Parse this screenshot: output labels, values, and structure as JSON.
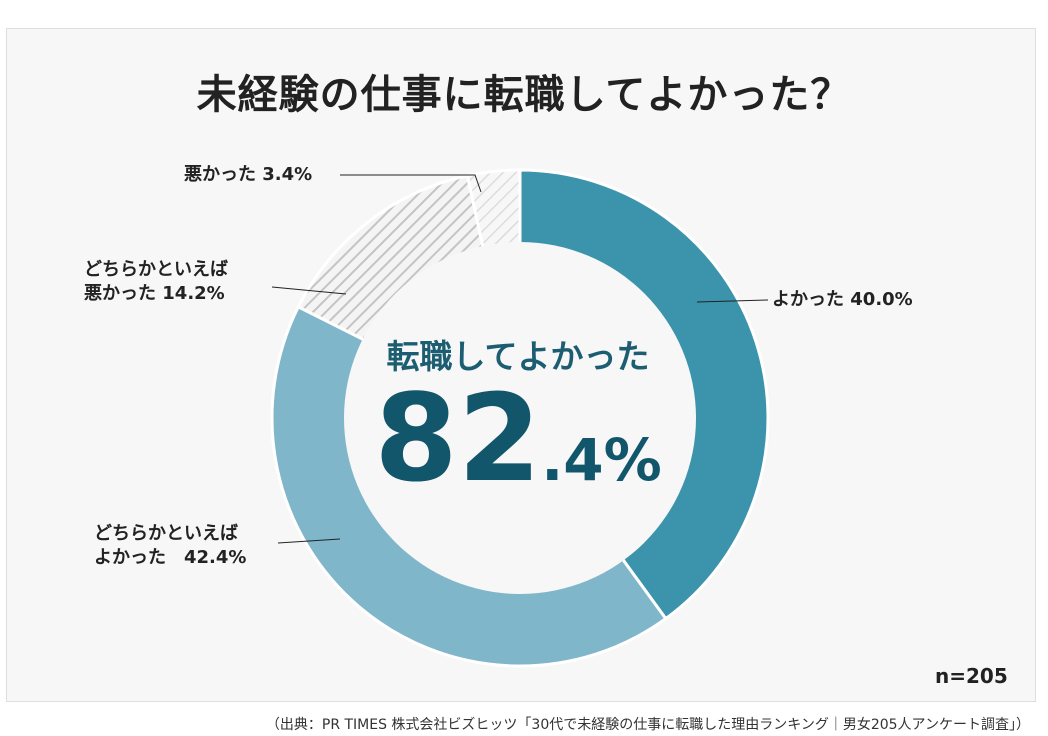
{
  "chart_data": {
    "type": "pie",
    "title": "未経験の仕事に転職してよかった？",
    "slices": [
      {
        "name": "よかった",
        "label_lines": [
          "よかった 40.0%"
        ],
        "value": 40.0,
        "color": "#3c94ac",
        "pattern": "solid"
      },
      {
        "name": "どちらかといえばよかった",
        "label_lines": [
          "どちらかといえば",
          "よかった　42.4%"
        ],
        "value": 42.4,
        "color": "#80b6c9",
        "pattern": "solid"
      },
      {
        "name": "どちらかといえば悪かった",
        "label_lines": [
          "どちらかといえば",
          "悪かった 14.2%"
        ],
        "value": 14.2,
        "color": "#c8c8c8",
        "pattern": "hatch"
      },
      {
        "name": "悪かった",
        "label_lines": [
          "悪かった 3.4%"
        ],
        "value": 3.4,
        "color": "#dedede",
        "pattern": "hatch-light"
      }
    ],
    "center": {
      "caption": "転職してよかった",
      "value_main": "82",
      "value_decimal": ".4%"
    },
    "sample_size": "n=205",
    "legend": "none"
  },
  "source_text": "（出典：PR TIMES 株式会社ビズヒッツ「30代で未経験の仕事に転職した理由ランキング｜男女205人アンケート調査」）"
}
